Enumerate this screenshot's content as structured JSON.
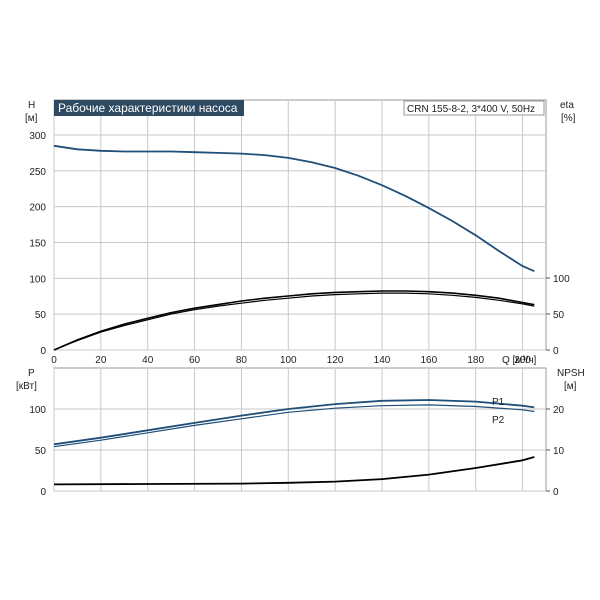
{
  "chart_data": [
    {
      "type": "line",
      "title": "Рабочие характеристики насоса",
      "model": "CRN 155-8-2, 3*400 V, 50Hz",
      "left_axis": {
        "label": "H",
        "unit": "[м]",
        "ylim": [
          0,
          300
        ],
        "ticks": [
          0,
          50,
          100,
          150,
          200,
          250,
          300
        ]
      },
      "right_axis": {
        "label": "eta",
        "unit": "[%]",
        "ylim": [
          0,
          100
        ],
        "ticks": [
          0,
          50,
          100
        ]
      },
      "x_axis": {
        "label": "Q [м³/ч]",
        "xlim": [
          0,
          210
        ],
        "ticks": [
          0,
          20,
          40,
          60,
          80,
          100,
          120,
          140,
          160,
          180,
          200
        ]
      },
      "grid": true,
      "colors": {
        "head": "#1f4e79",
        "eta": "#000000",
        "title_bg": "#2e4a62"
      },
      "series": [
        {
          "axis": "left",
          "x": [
            0,
            10,
            20,
            30,
            40,
            50,
            60,
            70,
            80,
            90,
            100,
            110,
            120,
            130,
            140,
            150,
            160,
            170,
            180,
            190,
            200,
            205
          ],
          "y": [
            285,
            280,
            278,
            277,
            277,
            277,
            276,
            275,
            274,
            272,
            268,
            262,
            254,
            243,
            230,
            215,
            198,
            180,
            160,
            138,
            117,
            110
          ]
        },
        {
          "axis": "right",
          "x": [
            0,
            10,
            20,
            30,
            40,
            50,
            60,
            70,
            80,
            90,
            100,
            110,
            120,
            130,
            140,
            150,
            160,
            170,
            180,
            190,
            200,
            205
          ],
          "y": [
            0,
            14,
            26,
            36,
            44,
            52,
            58,
            63,
            68,
            72,
            75,
            78,
            80,
            81,
            82,
            82,
            81,
            79,
            76,
            72,
            66,
            63
          ]
        },
        {
          "axis": "right",
          "x": [
            0,
            10,
            20,
            30,
            40,
            50,
            60,
            70,
            80,
            90,
            100,
            110,
            120,
            130,
            140,
            150,
            160,
            170,
            180,
            190,
            200,
            205
          ],
          "y": [
            0,
            13,
            25,
            34,
            42,
            50,
            56,
            61,
            65,
            69,
            72,
            75,
            77,
            78,
            79,
            79,
            78,
            76,
            73,
            69,
            64,
            61
          ]
        }
      ]
    },
    {
      "type": "line",
      "left_axis": {
        "label": "P",
        "unit": "[кВт]",
        "ylim": [
          0,
          125
        ],
        "ticks": [
          0,
          50,
          100
        ]
      },
      "right_axis": {
        "label": "NPSH",
        "unit": "[м]",
        "ylim": [
          0,
          25
        ],
        "ticks": [
          0,
          10,
          20
        ]
      },
      "xlim": [
        0,
        210
      ],
      "grid": true,
      "colors": {
        "power": "#1f4e79",
        "npsh": "#000000"
      },
      "series": [
        {
          "name": "P1",
          "axis": "left",
          "x": [
            0,
            20,
            40,
            60,
            80,
            100,
            120,
            140,
            160,
            180,
            200,
            205
          ],
          "y": [
            57,
            65,
            74,
            83,
            92,
            100,
            106,
            110,
            111,
            109,
            104,
            102
          ]
        },
        {
          "name": "P2",
          "axis": "left",
          "x": [
            0,
            20,
            40,
            60,
            80,
            100,
            120,
            140,
            160,
            180,
            200,
            205
          ],
          "y": [
            54,
            62,
            71,
            80,
            88,
            96,
            101,
            104,
            105,
            103,
            99,
            97
          ]
        },
        {
          "axis": "right",
          "x": [
            0,
            40,
            80,
            100,
            120,
            140,
            160,
            180,
            200,
            205
          ],
          "y": [
            1.6,
            1.7,
            1.8,
            2.0,
            2.3,
            2.9,
            4.0,
            5.6,
            7.5,
            8.3
          ]
        }
      ]
    }
  ]
}
